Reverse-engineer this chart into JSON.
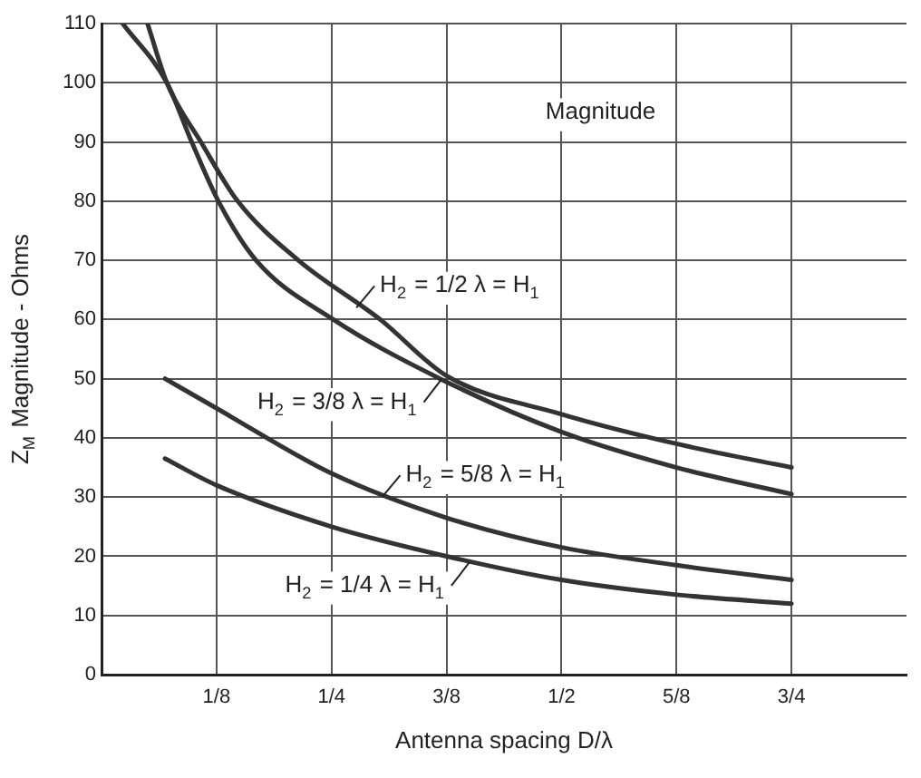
{
  "chart_data": {
    "type": "line",
    "title": "Magnitude",
    "xlabel": "Antenna spacing D/λ",
    "ylabel": "Z$_{M}$ Magnitude - Ohms",
    "xlim": [
      0,
      0.875
    ],
    "ylim": [
      0,
      110
    ],
    "xticks": [
      {
        "value": 0.125,
        "label": "1/8"
      },
      {
        "value": 0.25,
        "label": "1/4"
      },
      {
        "value": 0.375,
        "label": "3/8"
      },
      {
        "value": 0.5,
        "label": "1/2"
      },
      {
        "value": 0.625,
        "label": "5/8"
      },
      {
        "value": 0.75,
        "label": "3/4"
      }
    ],
    "yticks": [
      0,
      10,
      20,
      30,
      40,
      50,
      60,
      70,
      80,
      90,
      100,
      110
    ],
    "grid": true,
    "legend": false,
    "marker": "none",
    "line_style": "solid",
    "series": [
      {
        "color": "#333333",
        "x": [
          0.05,
          0.071,
          0.108,
          0.148,
          0.214,
          0.303,
          0.375,
          0.5,
          0.625,
          0.75
        ],
        "values": [
          110,
          100,
          90,
          80,
          70,
          60,
          50.5,
          44,
          39,
          35
        ]
      },
      {
        "color": "#333333",
        "x": [
          0.023,
          0.071,
          0.098,
          0.127,
          0.168,
          0.252,
          0.368,
          0.5,
          0.625,
          0.75
        ],
        "values": [
          110,
          100,
          90,
          80,
          70,
          60,
          50,
          41,
          35,
          30.5
        ]
      },
      {
        "color": "#333333",
        "x": [
          0.069,
          0.125,
          0.25,
          0.375,
          0.5,
          0.625,
          0.75
        ],
        "values": [
          50,
          45,
          34,
          26.5,
          21.5,
          18.5,
          16
        ]
      },
      {
        "color": "#333333",
        "x": [
          0.069,
          0.125,
          0.25,
          0.375,
          0.5,
          0.625,
          0.75
        ],
        "values": [
          36.5,
          32,
          25,
          20,
          16,
          13.5,
          12
        ]
      }
    ],
    "annotations": [
      {
        "text": "H$_{2}$ = 1/2 λ = H$_{1}$",
        "x": 0.277,
        "y": 62
      },
      {
        "text": "H$_{2}$ = 3/8 λ = H$_{1}$",
        "x": 0.37,
        "y": 50
      },
      {
        "text": "H$_{2}$ = 5/8 λ = H$_{1}$",
        "x": 0.305,
        "y": 30
      },
      {
        "text": "H$_{2}$ = 1/4 λ = H$_{1}$",
        "x": 0.4,
        "y": 19
      }
    ]
  }
}
